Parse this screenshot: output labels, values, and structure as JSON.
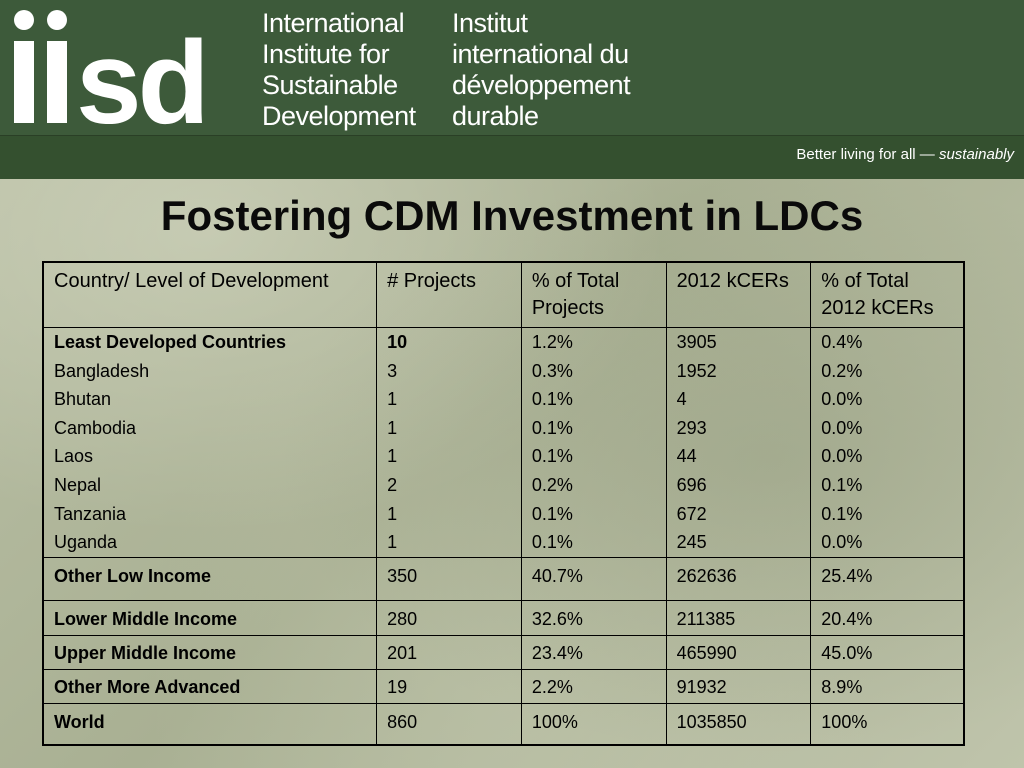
{
  "header": {
    "org_name_en": [
      "International",
      "Institute for",
      "Sustainable",
      "Development"
    ],
    "org_name_fr": [
      "Institut",
      "international du",
      "développement",
      "durable"
    ],
    "tagline": "Better living for all",
    "tagline_dash": " — ",
    "tagline_emph": "sustainably",
    "logo": "iisd-logo",
    "colors": {
      "header_bg": "#3d5a3a",
      "tagbar_bg": "#34502f",
      "text": "#ffffff"
    }
  },
  "title": "Fostering CDM Investment in LDCs",
  "table": {
    "headers": [
      "Country/ Level of Development",
      "# Projects",
      "% of Total Projects",
      "2012 kCERs",
      "% of Total 2012 kCERs"
    ],
    "ldc_group": {
      "heading": [
        "Least Developed Countries",
        "10",
        "1.2%",
        "3905",
        "0.4%"
      ],
      "rows": [
        [
          "Bangladesh",
          "3",
          "0.3%",
          "1952",
          "0.2%"
        ],
        [
          "Bhutan",
          "1",
          "0.1%",
          "4",
          "0.0%"
        ],
        [
          "Cambodia",
          "1",
          "0.1%",
          "293",
          "0.0%"
        ],
        [
          "Laos",
          "1",
          "0.1%",
          "44",
          "0.0%"
        ],
        [
          "Nepal",
          "2",
          "0.2%",
          "696",
          "0.1%"
        ],
        [
          "Tanzania",
          "1",
          "0.1%",
          "672",
          "0.1%"
        ],
        [
          "Uganda",
          "1",
          "0.1%",
          "245",
          "0.0%"
        ]
      ]
    },
    "other_low_income": [
      "Other Low Income",
      "350",
      "40.7%",
      "262636",
      "25.4%"
    ],
    "lower_middle_income": [
      "Lower Middle Income",
      "280",
      "32.6%",
      "211385",
      "20.4%"
    ],
    "upper_middle_income": [
      "Upper Middle Income",
      "201",
      "23.4%",
      "465990",
      "45.0%"
    ],
    "other_more_advanced": [
      "Other More Advanced",
      "19",
      "2.2%",
      "91932",
      "8.9%"
    ],
    "world": [
      "World",
      "860",
      "100%",
      "1035850",
      "100%"
    ]
  }
}
